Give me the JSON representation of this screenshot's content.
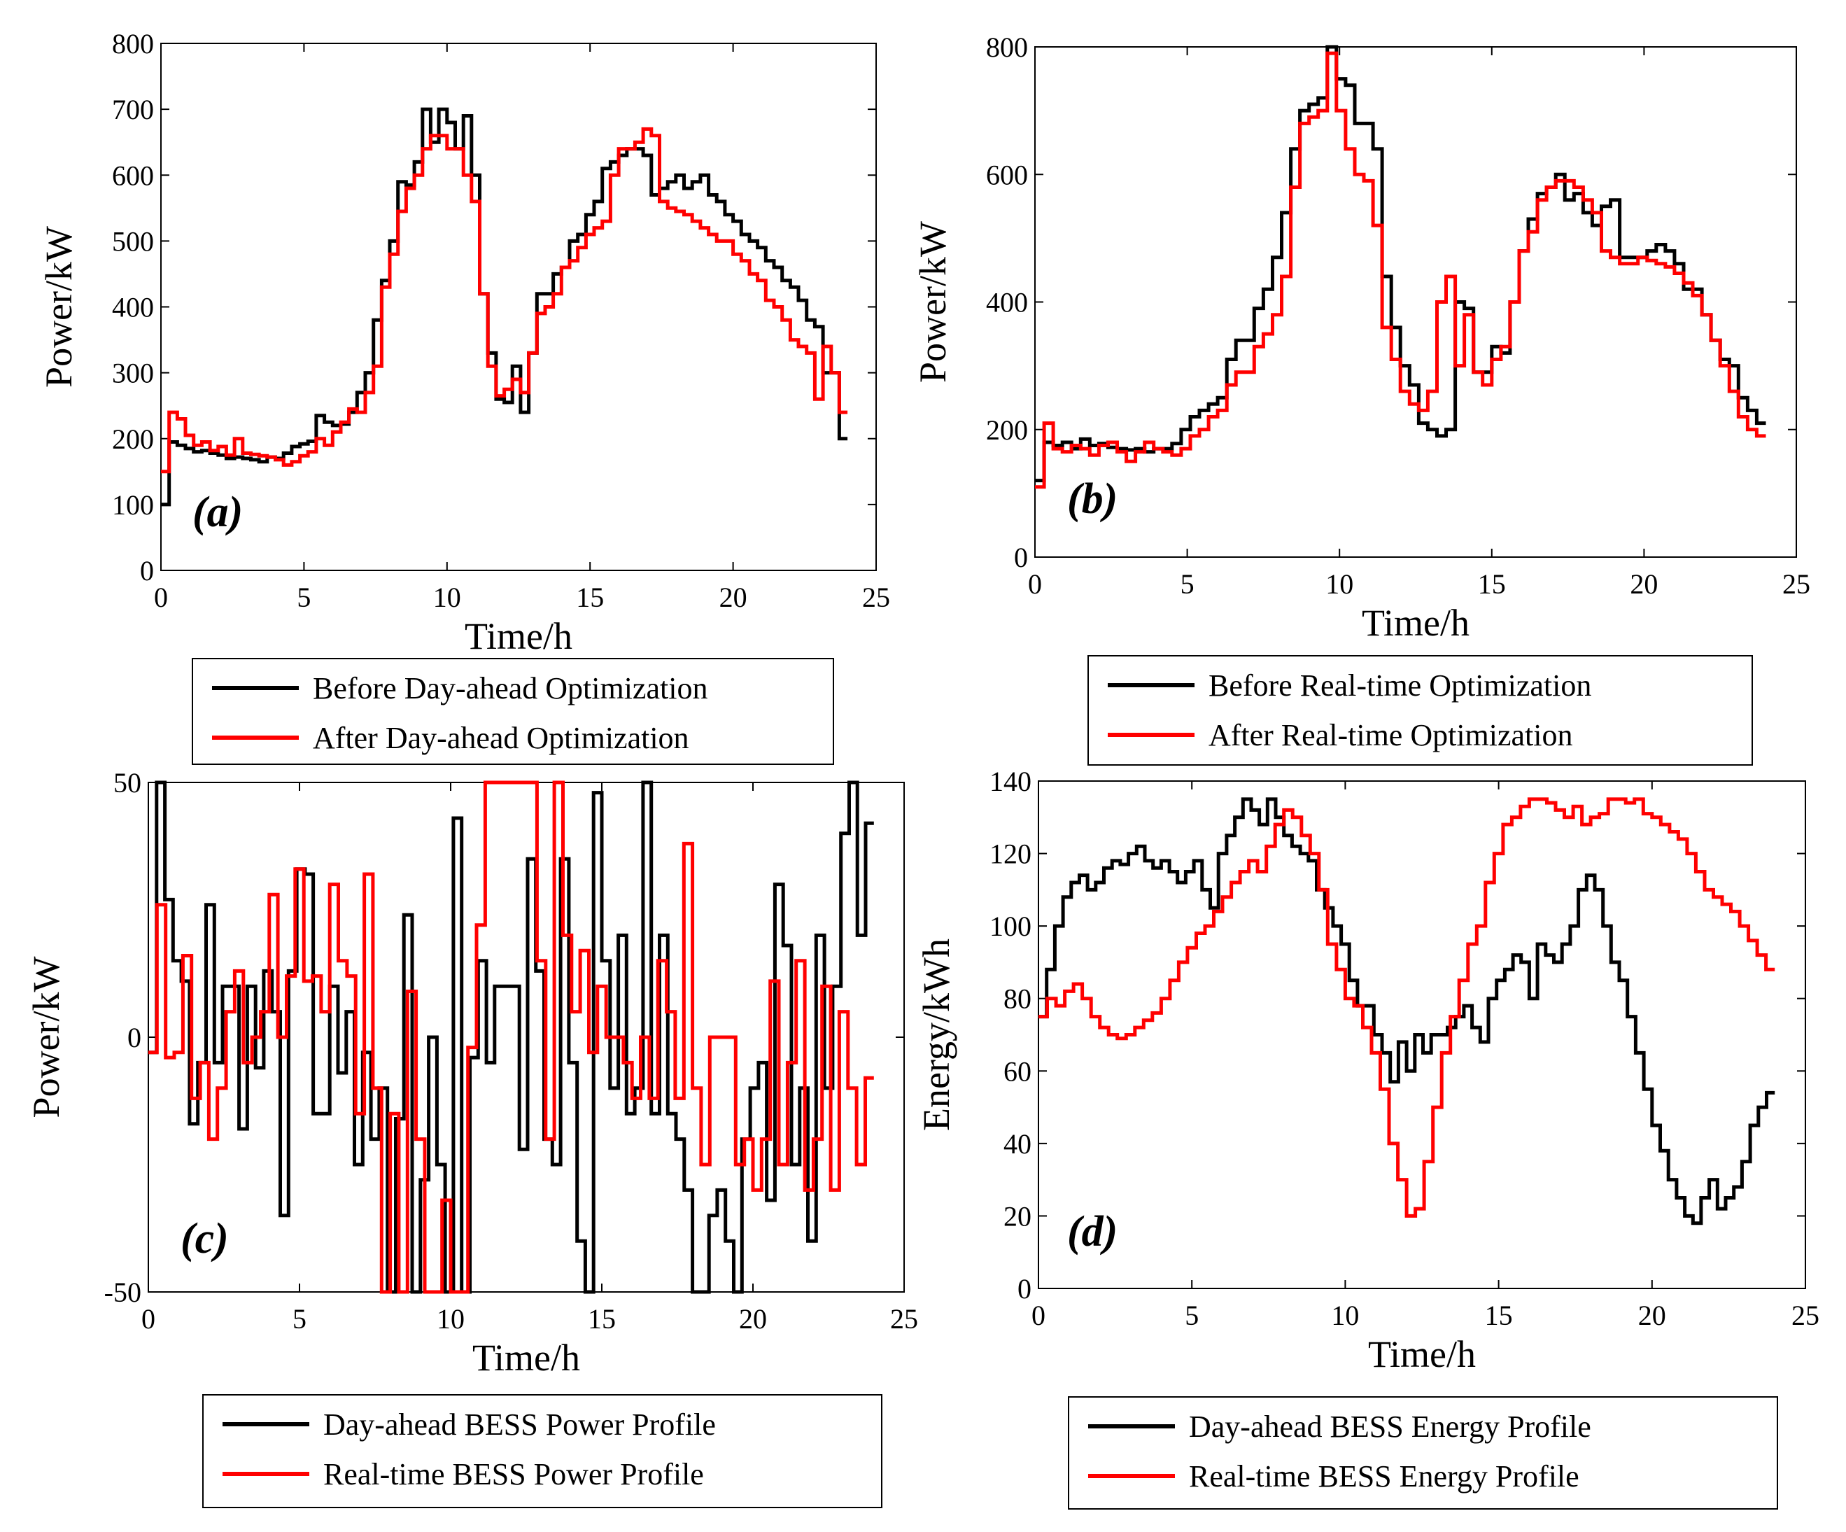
{
  "chart_data": [
    {
      "type": "line",
      "panel_label": "(a)",
      "xlabel": "Time/h",
      "ylabel": "Power/kW",
      "xlim": [
        0,
        25
      ],
      "ylim": [
        0,
        800
      ],
      "xticks": [
        0,
        5,
        10,
        15,
        20,
        25
      ],
      "yticks": [
        0,
        100,
        200,
        300,
        400,
        500,
        600,
        700,
        800
      ],
      "legend": [
        "Before Day-ahead Optimization",
        "After Day-ahead Optimization"
      ],
      "series": [
        {
          "name": "Before Day-ahead Optimization",
          "color": "#000000",
          "values": [
            100,
            195,
            190,
            185,
            180,
            182,
            178,
            175,
            170,
            172,
            170,
            168,
            165,
            172,
            170,
            178,
            188,
            192,
            196,
            235,
            225,
            220,
            222,
            240,
            270,
            300,
            380,
            440,
            500,
            590,
            585,
            620,
            700,
            650,
            700,
            680,
            640,
            690,
            600,
            420,
            330,
            260,
            255,
            310,
            240,
            330,
            420,
            420,
            450,
            460,
            500,
            510,
            540,
            560,
            610,
            620,
            630,
            640,
            640,
            630,
            570,
            580,
            590,
            600,
            580,
            590,
            600,
            570,
            560,
            540,
            530,
            510,
            500,
            490,
            470,
            460,
            440,
            430,
            410,
            380,
            370,
            300,
            300,
            200
          ]
        },
        {
          "name": "After Day-ahead Optimization",
          "color": "#ff0000",
          "values": [
            150,
            240,
            230,
            205,
            190,
            195,
            182,
            188,
            175,
            200,
            178,
            176,
            174,
            172,
            168,
            160,
            165,
            174,
            180,
            200,
            190,
            210,
            225,
            245,
            240,
            270,
            310,
            430,
            480,
            545,
            580,
            600,
            640,
            660,
            660,
            640,
            640,
            600,
            560,
            420,
            310,
            265,
            275,
            290,
            270,
            330,
            390,
            400,
            420,
            460,
            470,
            490,
            510,
            520,
            530,
            600,
            640,
            640,
            650,
            670,
            660,
            560,
            550,
            545,
            540,
            530,
            520,
            510,
            500,
            500,
            480,
            470,
            450,
            440,
            410,
            400,
            380,
            350,
            340,
            330,
            260,
            340,
            300,
            240
          ]
        }
      ]
    },
    {
      "type": "line",
      "panel_label": "(b)",
      "xlabel": "Time/h",
      "ylabel": "Power/kW",
      "xlim": [
        0,
        25
      ],
      "ylim": [
        0,
        800
      ],
      "xticks": [
        0,
        5,
        10,
        15,
        20,
        25
      ],
      "yticks": [
        0,
        200,
        400,
        600,
        800
      ],
      "legend": [
        "Before Real-time Optimization",
        "After Real-time Optimization"
      ],
      "series": [
        {
          "name": "Before Real-time Optimization",
          "color": "#000000",
          "values": [
            120,
            180,
            175,
            180,
            170,
            185,
            175,
            178,
            172,
            170,
            168,
            170,
            165,
            170,
            170,
            178,
            200,
            220,
            230,
            240,
            250,
            310,
            340,
            340,
            390,
            420,
            470,
            540,
            640,
            700,
            710,
            720,
            800,
            750,
            740,
            680,
            680,
            640,
            440,
            360,
            300,
            270,
            210,
            200,
            190,
            200,
            400,
            390,
            290,
            290,
            330,
            320,
            400,
            480,
            530,
            570,
            580,
            600,
            560,
            570,
            540,
            520,
            550,
            560,
            470,
            470,
            470,
            480,
            490,
            480,
            460,
            420,
            420,
            380,
            340,
            310,
            300,
            250,
            230,
            210
          ]
        },
        {
          "name": "After Real-time Optimization",
          "color": "#ff0000",
          "values": [
            110,
            210,
            170,
            165,
            175,
            170,
            160,
            175,
            180,
            165,
            150,
            165,
            180,
            170,
            165,
            160,
            170,
            190,
            200,
            220,
            230,
            270,
            290,
            290,
            330,
            350,
            380,
            440,
            580,
            680,
            690,
            700,
            790,
            700,
            640,
            600,
            590,
            520,
            360,
            310,
            260,
            240,
            230,
            260,
            400,
            440,
            300,
            380,
            290,
            270,
            310,
            330,
            400,
            480,
            510,
            560,
            580,
            590,
            590,
            580,
            560,
            540,
            480,
            470,
            460,
            460,
            470,
            465,
            460,
            455,
            445,
            430,
            410,
            380,
            340,
            300,
            260,
            220,
            200,
            190
          ]
        }
      ]
    },
    {
      "type": "line",
      "panel_label": "(c)",
      "xlabel": "Time/h",
      "ylabel": "Power/kW",
      "xlim": [
        0,
        25
      ],
      "ylim": [
        -50,
        50
      ],
      "xticks": [
        0,
        5,
        10,
        15,
        20,
        25
      ],
      "yticks": [
        -50,
        0,
        50
      ],
      "legend": [
        "Day-ahead BESS Power Profile",
        "Real-time BESS Power Profile"
      ],
      "series": [
        {
          "name": "Day-ahead BESS Power Profile",
          "color": "#000000",
          "values": [
            -3,
            50,
            27,
            15,
            11,
            -17,
            -5,
            26,
            -5,
            10,
            10,
            -18,
            10,
            -6,
            13,
            5,
            -35,
            13,
            33,
            32,
            -15,
            -15,
            10,
            -7,
            5,
            -25,
            -3,
            -20,
            -10,
            -50,
            -16,
            24,
            -50,
            -28,
            0,
            -25,
            -50,
            43,
            -50,
            -4,
            15,
            -5,
            10,
            10,
            10,
            -22,
            35,
            13,
            -20,
            -25,
            35,
            -5,
            -40,
            -50,
            48,
            15,
            -10,
            20,
            -15,
            -10,
            50,
            -15,
            20,
            -15,
            -20,
            -30,
            -50,
            -50,
            -35,
            -30,
            -40,
            -50,
            -20,
            -10,
            -5,
            -32,
            30,
            18,
            -25,
            -10,
            -40,
            20,
            -10,
            10,
            40,
            50,
            20,
            42
          ]
        },
        {
          "name": "Real-time BESS Power Profile",
          "color": "#ff0000",
          "values": [
            -3,
            26,
            -4,
            -3,
            16,
            -12,
            -5,
            -20,
            -10,
            5,
            13,
            -5,
            0,
            5,
            28,
            0,
            12,
            33,
            11,
            12,
            5,
            30,
            15,
            12,
            -15,
            32,
            -10,
            -50,
            -15,
            -50,
            9,
            -20,
            -50,
            -50,
            -32,
            -50,
            -50,
            -2,
            22,
            50,
            50,
            50,
            50,
            50,
            50,
            15,
            -20,
            50,
            20,
            5,
            17,
            -3,
            10,
            0,
            0,
            -5,
            -12,
            0,
            -12,
            15,
            5,
            -12,
            38,
            -10,
            -25,
            0,
            0,
            0,
            -25,
            -20,
            -30,
            -20,
            11,
            -25,
            -5,
            15,
            -30,
            -20,
            10,
            -30,
            5,
            -10,
            -25,
            -8
          ]
        }
      ]
    },
    {
      "type": "line",
      "panel_label": "(d)",
      "xlabel": "Time/h",
      "ylabel": "Energy/kWh",
      "xlim": [
        0,
        25
      ],
      "ylim": [
        0,
        140
      ],
      "xticks": [
        0,
        5,
        10,
        15,
        20,
        25
      ],
      "yticks": [
        0,
        20,
        40,
        60,
        80,
        100,
        120,
        140
      ],
      "legend": [
        "Day-ahead BESS Energy Profile",
        "Real-time BESS Energy Profile"
      ],
      "series": [
        {
          "name": "Day-ahead BESS Energy Profile",
          "color": "#000000",
          "values": [
            75,
            88,
            100,
            108,
            112,
            114,
            110,
            112,
            116,
            118,
            117,
            120,
            122,
            118,
            116,
            118,
            115,
            112,
            115,
            118,
            110,
            105,
            120,
            125,
            130,
            135,
            132,
            128,
            135,
            130,
            125,
            122,
            120,
            118,
            110,
            105,
            100,
            95,
            85,
            78,
            78,
            70,
            65,
            57,
            68,
            60,
            70,
            65,
            70,
            70,
            72,
            75,
            78,
            72,
            68,
            80,
            85,
            88,
            92,
            90,
            80,
            95,
            92,
            90,
            95,
            100,
            110,
            114,
            110,
            100,
            90,
            85,
            75,
            65,
            55,
            45,
            38,
            30,
            25,
            20,
            18,
            25,
            30,
            22,
            25,
            28,
            35,
            45,
            50,
            54
          ]
        },
        {
          "name": "Real-time BESS Energy Profile",
          "color": "#ff0000",
          "values": [
            75,
            80,
            78,
            82,
            84,
            80,
            75,
            72,
            70,
            69,
            70,
            72,
            74,
            76,
            80,
            85,
            90,
            94,
            98,
            100,
            104,
            108,
            112,
            115,
            118,
            115,
            122,
            128,
            132,
            130,
            125,
            120,
            110,
            95,
            88,
            80,
            78,
            72,
            65,
            55,
            40,
            30,
            20,
            22,
            35,
            50,
            65,
            75,
            85,
            95,
            100,
            112,
            120,
            128,
            130,
            133,
            135,
            135,
            134,
            132,
            130,
            133,
            128,
            130,
            131,
            135,
            135,
            134,
            135,
            131,
            130,
            128,
            126,
            124,
            120,
            115,
            110,
            108,
            106,
            104,
            100,
            96,
            92,
            88
          ]
        }
      ]
    }
  ]
}
